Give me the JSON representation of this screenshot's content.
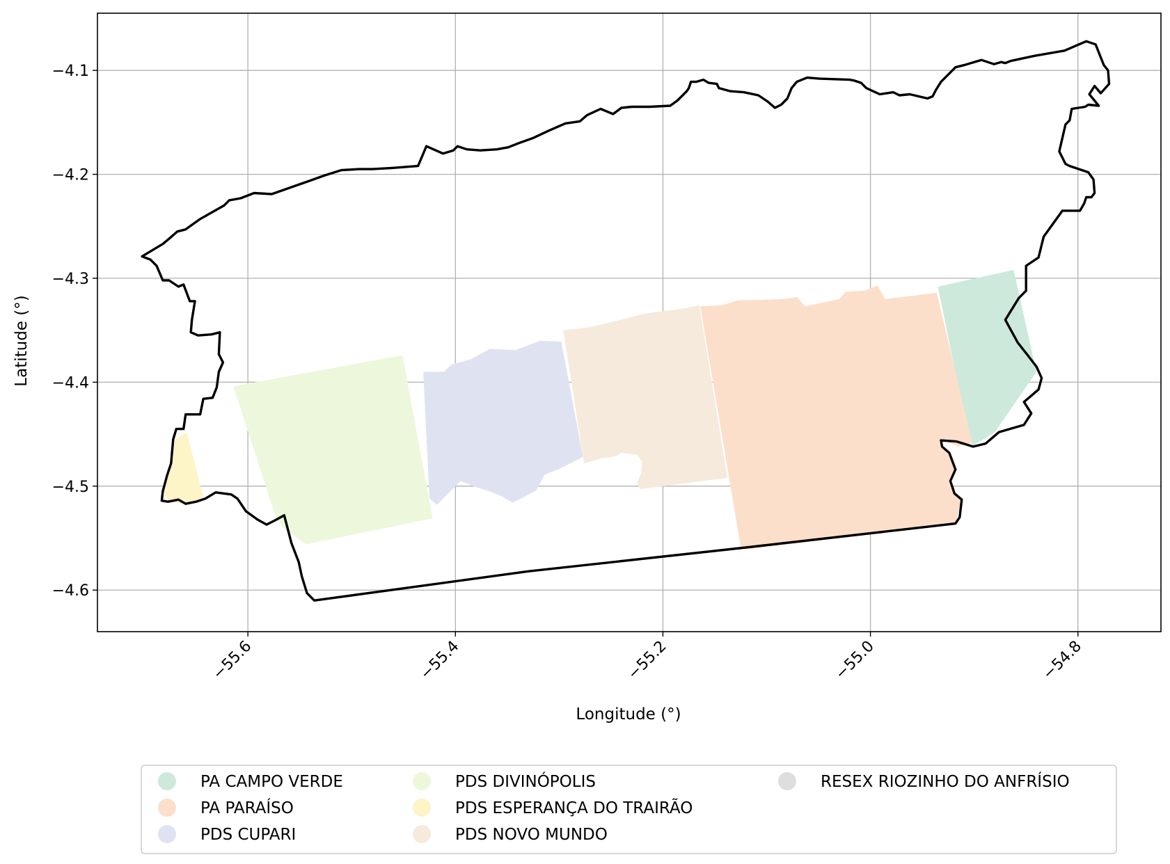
{
  "chart_data": {
    "type": "map",
    "title": "",
    "xlabel": "Longitude (°)",
    "ylabel": "Latitude (°)",
    "xlim": [
      -55.745,
      -54.72
    ],
    "ylim": [
      -4.64,
      -4.045
    ],
    "xticks": [
      -55.6,
      -55.4,
      -55.2,
      -55.0,
      -54.8
    ],
    "xtick_labels": [
      "−55.6",
      "−55.4",
      "−55.2",
      "−55.0",
      "−54.8"
    ],
    "yticks": [
      -4.1,
      -4.2,
      -4.3,
      -4.4,
      -4.5,
      -4.6
    ],
    "ytick_labels": [
      "−4.1",
      "−4.2",
      "−4.3",
      "−4.4",
      "−4.5",
      "−4.6"
    ],
    "xtick_rotation_deg": 45,
    "grid": true,
    "legend_position": "bottom-center",
    "legend_columns": 3,
    "legend": [
      {
        "label": "PA CAMPO VERDE",
        "color": "#cce9dc"
      },
      {
        "label": "PA PARAÍSO",
        "color": "#fcdfca"
      },
      {
        "label": "PDS CUPARI",
        "color": "#dfe3f1"
      },
      {
        "label": "PDS DIVINÓPOLIS",
        "color": "#edf7dc"
      },
      {
        "label": "PDS ESPERANÇA DO TRAIRÃO",
        "color": "#fdf4c8"
      },
      {
        "label": "PDS NOVO MUNDO",
        "color": "#f5eadc"
      },
      {
        "label": "RESEX RIOZINHO DO ANFRÍSIO",
        "color": "#dedede"
      }
    ],
    "boundary": [
      [
        -55.702,
        -4.279
      ],
      [
        -55.694,
        -4.282
      ],
      [
        -55.688,
        -4.288
      ],
      [
        -55.682,
        -4.302
      ],
      [
        -55.676,
        -4.302
      ],
      [
        -55.667,
        -4.308
      ],
      [
        -55.662,
        -4.306
      ],
      [
        -55.656,
        -4.322
      ],
      [
        -55.651,
        -4.322
      ],
      [
        -55.654,
        -4.34
      ],
      [
        -55.655,
        -4.352
      ],
      [
        -55.648,
        -4.355
      ],
      [
        -55.635,
        -4.354
      ],
      [
        -55.627,
        -4.352
      ],
      [
        -55.628,
        -4.373
      ],
      [
        -55.624,
        -4.381
      ],
      [
        -55.628,
        -4.39
      ],
      [
        -55.63,
        -4.405
      ],
      [
        -55.634,
        -4.415
      ],
      [
        -55.643,
        -4.416
      ],
      [
        -55.646,
        -4.431
      ],
      [
        -55.66,
        -4.431
      ],
      [
        -55.662,
        -4.445
      ],
      [
        -55.669,
        -4.445
      ],
      [
        -55.672,
        -4.455
      ],
      [
        -55.674,
        -4.478
      ],
      [
        -55.678,
        -4.49
      ],
      [
        -55.682,
        -4.505
      ],
      [
        -55.683,
        -4.514
      ],
      [
        -55.677,
        -4.515
      ],
      [
        -55.667,
        -4.513
      ],
      [
        -55.66,
        -4.517
      ],
      [
        -55.65,
        -4.515
      ],
      [
        -55.641,
        -4.512
      ],
      [
        -55.631,
        -4.506
      ],
      [
        -55.616,
        -4.508
      ],
      [
        -55.61,
        -4.512
      ],
      [
        -55.602,
        -4.524
      ],
      [
        -55.591,
        -4.532
      ],
      [
        -55.582,
        -4.537
      ],
      [
        -55.574,
        -4.533
      ],
      [
        -55.565,
        -4.528
      ],
      [
        -55.558,
        -4.555
      ],
      [
        -55.551,
        -4.573
      ],
      [
        -55.548,
        -4.587
      ],
      [
        -55.543,
        -4.603
      ],
      [
        -55.536,
        -4.61
      ],
      [
        -55.33,
        -4.582
      ],
      [
        -55.12,
        -4.559
      ],
      [
        -54.918,
        -4.536
      ],
      [
        -54.914,
        -4.53
      ],
      [
        -54.912,
        -4.513
      ],
      [
        -54.919,
        -4.507
      ],
      [
        -54.923,
        -4.495
      ],
      [
        -54.918,
        -4.484
      ],
      [
        -54.924,
        -4.468
      ],
      [
        -54.931,
        -4.462
      ],
      [
        -54.932,
        -4.456
      ],
      [
        -54.917,
        -4.457
      ],
      [
        -54.901,
        -4.462
      ],
      [
        -54.889,
        -4.459
      ],
      [
        -54.876,
        -4.448
      ],
      [
        -54.852,
        -4.441
      ],
      [
        -54.845,
        -4.43
      ],
      [
        -54.852,
        -4.419
      ],
      [
        -54.838,
        -4.407
      ],
      [
        -54.835,
        -4.396
      ],
      [
        -54.84,
        -4.385
      ],
      [
        -54.85,
        -4.372
      ],
      [
        -54.858,
        -4.362
      ],
      [
        -54.87,
        -4.34
      ],
      [
        -54.857,
        -4.319
      ],
      [
        -54.85,
        -4.312
      ],
      [
        -54.85,
        -4.288
      ],
      [
        -54.838,
        -4.28
      ],
      [
        -54.833,
        -4.26
      ],
      [
        -54.815,
        -4.235
      ],
      [
        -54.798,
        -4.235
      ],
      [
        -54.794,
        -4.228
      ],
      [
        -54.792,
        -4.222
      ],
      [
        -54.787,
        -4.222
      ],
      [
        -54.784,
        -4.218
      ],
      [
        -54.785,
        -4.205
      ],
      [
        -54.79,
        -4.198
      ],
      [
        -54.808,
        -4.192
      ],
      [
        -54.812,
        -4.19
      ],
      [
        -54.818,
        -4.178
      ],
      [
        -54.812,
        -4.152
      ],
      [
        -54.808,
        -4.148
      ],
      [
        -54.806,
        -4.137
      ],
      [
        -54.793,
        -4.135
      ],
      [
        -54.79,
        -4.133
      ],
      [
        -54.78,
        -4.134
      ],
      [
        -54.789,
        -4.123
      ],
      [
        -54.784,
        -4.115
      ],
      [
        -54.778,
        -4.122
      ],
      [
        -54.77,
        -4.113
      ],
      [
        -54.771,
        -4.1
      ],
      [
        -54.775,
        -4.095
      ],
      [
        -54.779,
        -4.085
      ],
      [
        -54.783,
        -4.075
      ],
      [
        -54.792,
        -4.072
      ],
      [
        -54.813,
        -4.081
      ],
      [
        -54.842,
        -4.086
      ],
      [
        -54.865,
        -4.091
      ],
      [
        -54.87,
        -4.093
      ],
      [
        -54.874,
        -4.092
      ],
      [
        -54.881,
        -4.094
      ],
      [
        -54.893,
        -4.09
      ],
      [
        -54.91,
        -4.095
      ],
      [
        -54.918,
        -4.097
      ],
      [
        -54.924,
        -4.103
      ],
      [
        -54.932,
        -4.111
      ],
      [
        -54.937,
        -4.119
      ],
      [
        -54.94,
        -4.125
      ],
      [
        -54.945,
        -4.127
      ],
      [
        -54.962,
        -4.123
      ],
      [
        -54.972,
        -4.124
      ],
      [
        -54.978,
        -4.121
      ],
      [
        -54.991,
        -4.123
      ],
      [
        -55.004,
        -4.117
      ],
      [
        -55.009,
        -4.112
      ],
      [
        -55.015,
        -4.11
      ],
      [
        -55.02,
        -4.109
      ],
      [
        -55.049,
        -4.108
      ],
      [
        -55.061,
        -4.107
      ],
      [
        -55.071,
        -4.111
      ],
      [
        -55.076,
        -4.117
      ],
      [
        -55.08,
        -4.127
      ],
      [
        -55.086,
        -4.133
      ],
      [
        -55.092,
        -4.136
      ],
      [
        -55.099,
        -4.13
      ],
      [
        -55.108,
        -4.124
      ],
      [
        -55.122,
        -4.121
      ],
      [
        -55.135,
        -4.12
      ],
      [
        -55.146,
        -4.117
      ],
      [
        -55.148,
        -4.113
      ],
      [
        -55.156,
        -4.112
      ],
      [
        -55.161,
        -4.109
      ],
      [
        -55.168,
        -4.111
      ],
      [
        -55.173,
        -4.111
      ],
      [
        -55.175,
        -4.117
      ],
      [
        -55.177,
        -4.12
      ],
      [
        -55.186,
        -4.129
      ],
      [
        -55.193,
        -4.134
      ],
      [
        -55.213,
        -4.135
      ],
      [
        -55.23,
        -4.135
      ],
      [
        -55.24,
        -4.136
      ],
      [
        -55.248,
        -4.142
      ],
      [
        -55.26,
        -4.137
      ],
      [
        -55.273,
        -4.143
      ],
      [
        -55.28,
        -4.149
      ],
      [
        -55.294,
        -4.151
      ],
      [
        -55.31,
        -4.158
      ],
      [
        -55.325,
        -4.165
      ],
      [
        -55.339,
        -4.17
      ],
      [
        -55.349,
        -4.174
      ],
      [
        -55.36,
        -4.176
      ],
      [
        -55.376,
        -4.177
      ],
      [
        -55.389,
        -4.176
      ],
      [
        -55.398,
        -4.173
      ],
      [
        -55.402,
        -4.177
      ],
      [
        -55.412,
        -4.18
      ],
      [
        -55.428,
        -4.173
      ],
      [
        -55.436,
        -4.192
      ],
      [
        -55.462,
        -4.194
      ],
      [
        -55.48,
        -4.195
      ],
      [
        -55.493,
        -4.195
      ],
      [
        -55.51,
        -4.196
      ],
      [
        -55.526,
        -4.201
      ],
      [
        -55.54,
        -4.206
      ],
      [
        -55.557,
        -4.212
      ],
      [
        -55.577,
        -4.219
      ],
      [
        -55.594,
        -4.218
      ],
      [
        -55.607,
        -4.223
      ],
      [
        -55.618,
        -4.225
      ],
      [
        -55.623,
        -4.23
      ],
      [
        -55.646,
        -4.243
      ],
      [
        -55.66,
        -4.253
      ],
      [
        -55.668,
        -4.255
      ],
      [
        -55.676,
        -4.262
      ],
      [
        -55.682,
        -4.267
      ],
      [
        -55.702,
        -4.279
      ]
    ],
    "areas": [
      {
        "name": "PA CAMPO VERDE",
        "points": [
          [
            -54.935,
            -4.308
          ],
          [
            -54.862,
            -4.292
          ],
          [
            -54.84,
            -4.39
          ],
          [
            -54.88,
            -4.448
          ],
          [
            -54.901,
            -4.461
          ],
          [
            -54.905,
            -4.455
          ]
        ]
      },
      {
        "name": "PA PARAÍSO",
        "points": [
          [
            -55.164,
            -4.327
          ],
          [
            -55.143,
            -4.326
          ],
          [
            -55.127,
            -4.321
          ],
          [
            -55.111,
            -4.321
          ],
          [
            -55.084,
            -4.32
          ],
          [
            -55.071,
            -4.318
          ],
          [
            -55.063,
            -4.327
          ],
          [
            -55.03,
            -4.32
          ],
          [
            -55.024,
            -4.313
          ],
          [
            -55.006,
            -4.312
          ],
          [
            -54.993,
            -4.307
          ],
          [
            -54.986,
            -4.32
          ],
          [
            -54.936,
            -4.314
          ],
          [
            -54.902,
            -4.458
          ],
          [
            -54.915,
            -4.462
          ],
          [
            -54.93,
            -4.456
          ],
          [
            -54.933,
            -4.462
          ],
          [
            -54.922,
            -4.47
          ],
          [
            -54.918,
            -4.482
          ],
          [
            -54.923,
            -4.496
          ],
          [
            -54.918,
            -4.508
          ],
          [
            -54.912,
            -4.513
          ],
          [
            -54.918,
            -4.536
          ],
          [
            -55.12,
            -4.561
          ],
          [
            -55.125,
            -4.559
          ]
        ]
      },
      {
        "name": "PDS NOVO MUNDO",
        "points": [
          [
            -55.296,
            -4.35
          ],
          [
            -55.27,
            -4.347
          ],
          [
            -55.249,
            -4.342
          ],
          [
            -55.217,
            -4.334
          ],
          [
            -55.179,
            -4.329
          ],
          [
            -55.165,
            -4.326
          ],
          [
            -55.138,
            -4.492
          ],
          [
            -55.222,
            -4.503
          ],
          [
            -55.225,
            -4.497
          ],
          [
            -55.221,
            -4.488
          ],
          [
            -55.22,
            -4.476
          ],
          [
            -55.225,
            -4.47
          ],
          [
            -55.24,
            -4.468
          ],
          [
            -55.245,
            -4.471
          ],
          [
            -55.258,
            -4.473
          ],
          [
            -55.276,
            -4.478
          ]
        ]
      },
      {
        "name": "PDS CUPARI",
        "points": [
          [
            -55.431,
            -4.39
          ],
          [
            -55.411,
            -4.39
          ],
          [
            -55.404,
            -4.383
          ],
          [
            -55.385,
            -4.378
          ],
          [
            -55.367,
            -4.368
          ],
          [
            -55.342,
            -4.369
          ],
          [
            -55.318,
            -4.36
          ],
          [
            -55.298,
            -4.361
          ],
          [
            -55.277,
            -4.472
          ],
          [
            -55.299,
            -4.483
          ],
          [
            -55.314,
            -4.489
          ],
          [
            -55.322,
            -4.504
          ],
          [
            -55.335,
            -4.511
          ],
          [
            -55.345,
            -4.516
          ],
          [
            -55.355,
            -4.51
          ],
          [
            -55.367,
            -4.505
          ],
          [
            -55.38,
            -4.501
          ],
          [
            -55.395,
            -4.495
          ],
          [
            -55.41,
            -4.51
          ],
          [
            -55.418,
            -4.518
          ],
          [
            -55.425,
            -4.512
          ]
        ]
      },
      {
        "name": "PDS DIVINÓPOLIS",
        "points": [
          [
            -55.614,
            -4.404
          ],
          [
            -55.451,
            -4.374
          ],
          [
            -55.422,
            -4.531
          ],
          [
            -55.544,
            -4.556
          ],
          [
            -55.566,
            -4.54
          ],
          [
            -55.573,
            -4.53
          ]
        ]
      },
      {
        "name": "PDS ESPERANÇA DO TRAIRÃO",
        "points": [
          [
            -55.671,
            -4.456
          ],
          [
            -55.659,
            -4.448
          ],
          [
            -55.643,
            -4.51
          ],
          [
            -55.651,
            -4.516
          ],
          [
            -55.664,
            -4.517
          ],
          [
            -55.676,
            -4.515
          ],
          [
            -55.682,
            -4.505
          ],
          [
            -55.677,
            -4.49
          ],
          [
            -55.672,
            -4.472
          ]
        ]
      }
    ]
  }
}
